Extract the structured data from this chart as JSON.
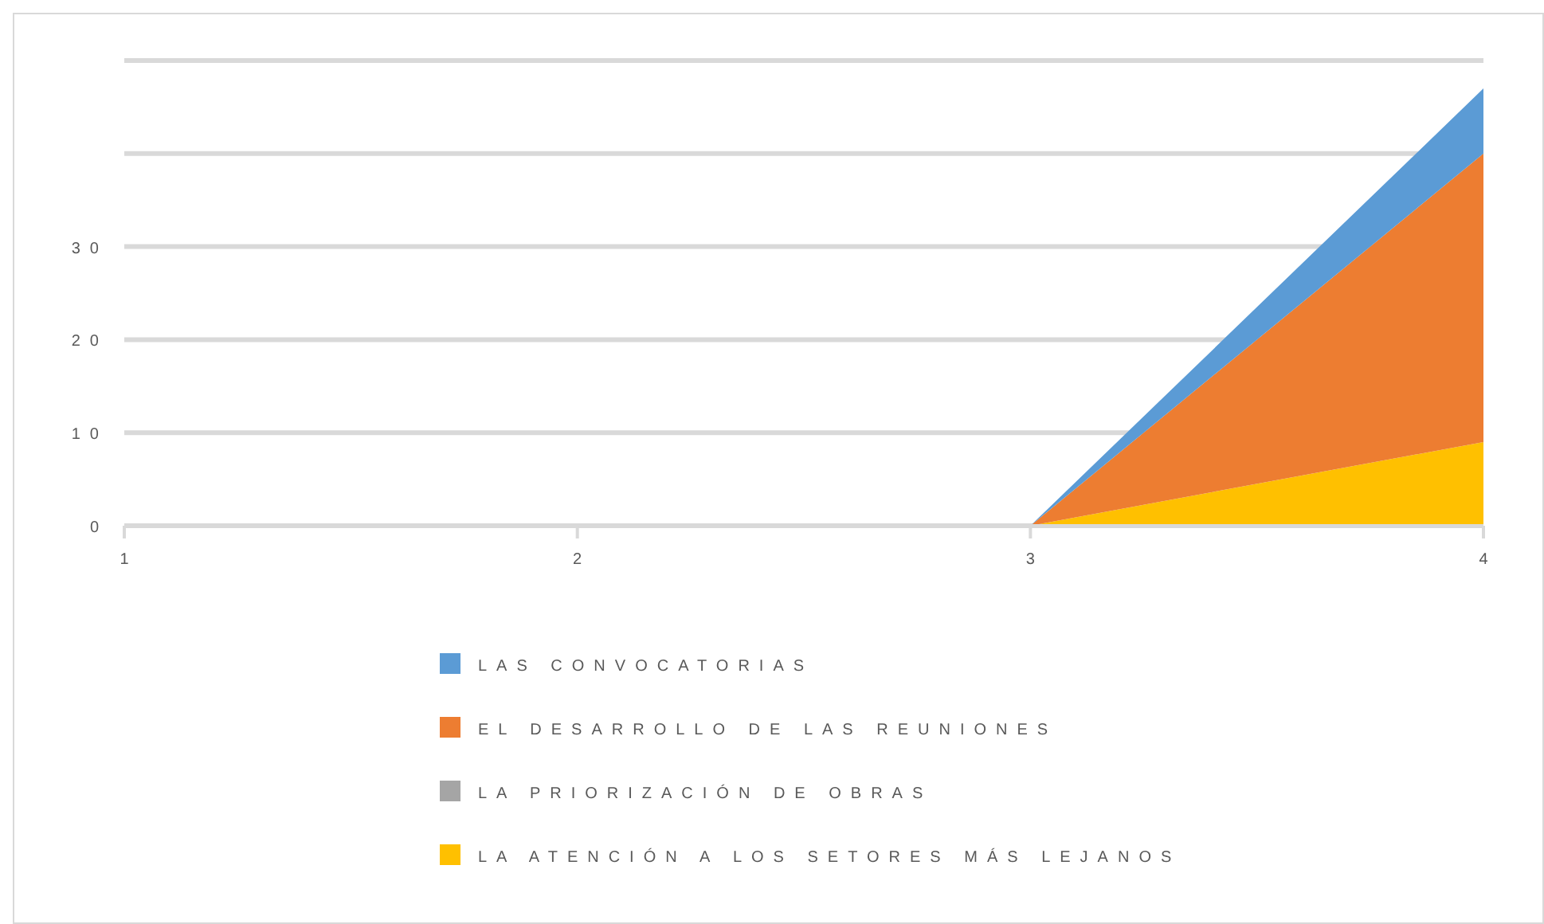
{
  "chart_data": {
    "type": "area",
    "stacked": true,
    "categories": [
      "1",
      "2",
      "3",
      "4"
    ],
    "series": [
      {
        "name": "LA ATENCIÓN A LOS SETORES MÁS LEJANOS",
        "color": "#ffc000",
        "values": [
          0,
          0,
          0,
          9
        ]
      },
      {
        "name": "LA PRIORIZACIÓN DE OBRAS",
        "color": "#a5a5a5",
        "values": [
          null,
          null,
          null,
          null
        ]
      },
      {
        "name": "EL DESARROLLO DE LAS REUNIONES",
        "color": "#ed7d31",
        "values": [
          0,
          0,
          0,
          31
        ]
      },
      {
        "name": "LAS CONVOCATORIAS",
        "color": "#5b9bd5",
        "values": [
          0,
          0,
          0,
          7
        ]
      }
    ],
    "ylim": [
      0,
      50
    ],
    "yticks": [
      0,
      10,
      20,
      30,
      {
        "value": 40,
        "label": null
      },
      {
        "value": 50,
        "label": null
      }
    ],
    "grid": "y",
    "legend": "bottom"
  }
}
